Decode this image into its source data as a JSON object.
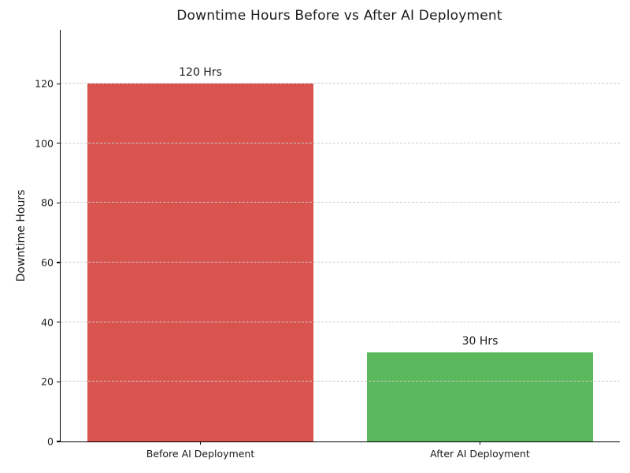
{
  "chart_data": {
    "type": "bar",
    "title": "Downtime Hours Before vs After AI Deployment",
    "categories": [
      "Before AI Deployment",
      "After AI Deployment"
    ],
    "values": [
      120,
      30
    ],
    "bar_labels": [
      "120 Hrs",
      "30 Hrs"
    ],
    "bar_colors": [
      "#d9534f",
      "#5cb85c"
    ],
    "xlabel": "",
    "ylabel": "Downtime Hours",
    "ylim": [
      0,
      138
    ],
    "yticks": [
      0,
      20,
      40,
      60,
      80,
      100,
      120
    ],
    "grid": "horizontal-dashed",
    "grid_color": "#cccccc",
    "axis_color": "#000000",
    "text_color": "#1a1a1a",
    "legend": "none"
  }
}
